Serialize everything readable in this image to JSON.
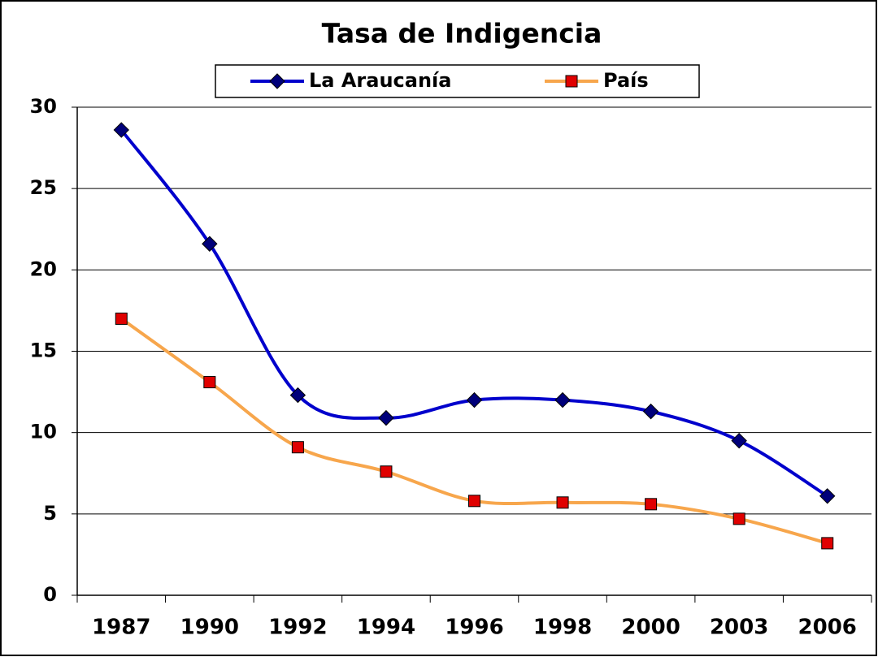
{
  "chart_data": {
    "type": "line",
    "title": "Tasa de Indigencia",
    "categories": [
      "1987",
      "1990",
      "1992",
      "1994",
      "1996",
      "1998",
      "2000",
      "2003",
      "2006"
    ],
    "series": [
      {
        "name": "La Araucanía",
        "color": "#0000cc",
        "marker": "diamond",
        "marker_color": "#00007a",
        "values": [
          28.6,
          21.6,
          12.3,
          10.9,
          12.0,
          12.0,
          11.3,
          9.5,
          6.1
        ]
      },
      {
        "name": "País",
        "color": "#f7a64c",
        "marker": "square",
        "marker_color": "#e00000",
        "values": [
          17.0,
          13.1,
          9.1,
          7.6,
          5.8,
          5.7,
          5.6,
          4.7,
          3.2
        ]
      }
    ],
    "ylim": [
      0,
      30
    ],
    "yticks": [
      0,
      5,
      10,
      15,
      20,
      25,
      30
    ],
    "grid": true,
    "legend": "top",
    "smooth": true
  }
}
